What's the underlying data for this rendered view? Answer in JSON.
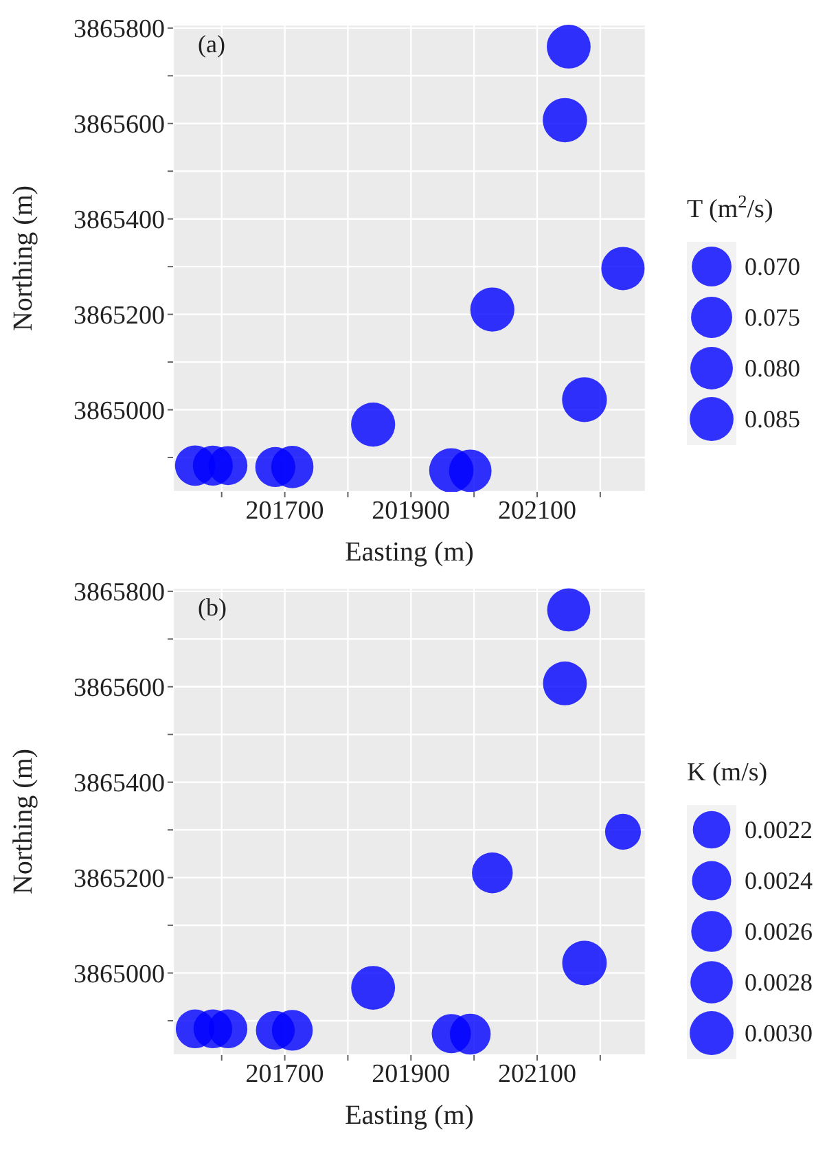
{
  "chart_data": [
    {
      "type": "bubble",
      "xlabel": "Easting (m)",
      "ylabel": "Northing (m)",
      "legend_title": "T (m$^{2}$/s)",
      "annotations": [
        "(a)"
      ],
      "color": "#0000ff",
      "x": [
        201558,
        201586,
        201610,
        201685,
        201712,
        201840,
        201964,
        201994,
        202029,
        202144,
        202150,
        202175,
        202236
      ],
      "values": [
        3864883,
        3864883,
        3864883,
        3864880,
        3864880,
        3864969,
        3864873,
        3864872,
        3865210,
        3865607,
        3865761,
        3865021,
        3865296
      ],
      "sizes": [
        0.072,
        0.0706,
        0.067,
        0.071,
        0.079,
        0.086,
        0.087,
        0.08,
        0.086,
        0.087,
        0.085,
        0.089,
        0.083
      ],
      "size_legend": [
        {
          "value": 0.07,
          "label": "0.070"
        },
        0.075,
        {
          "value": 0.08,
          "label": "0.080"
        },
        0.085
      ],
      "xlim": [
        201523,
        202272
      ],
      "xticks": [
        {
          "value": 201600,
          "label": null
        },
        201700,
        {
          "value": 201800,
          "label": null
        },
        201900,
        {
          "value": 202000,
          "label": null
        },
        202100,
        {
          "value": 202200,
          "label": null
        }
      ],
      "ylim": [
        3864828,
        3865807
      ],
      "yticks": [
        {
          "value": 3864900,
          "label": null
        },
        3865000,
        {
          "value": 3865100,
          "label": null
        },
        3865200,
        {
          "value": 3865300,
          "label": null
        },
        3865400,
        {
          "value": 3865500,
          "label": null
        },
        3865600,
        {
          "value": 3865700,
          "label": null
        },
        3865800
      ],
      "grid": true
    },
    {
      "type": "bubble",
      "xlabel": "Easting (m)",
      "ylabel": "Northing (m)",
      "legend_title": "K (m/s)",
      "annotations": [
        "(b)"
      ],
      "color": "#0000ff",
      "x": [
        201558,
        201586,
        201610,
        201685,
        201712,
        201840,
        201964,
        201994,
        202029,
        202144,
        202150,
        202175,
        202236
      ],
      "values": [
        3864883,
        3864883,
        3864883,
        3864880,
        3864880,
        3864969,
        3864873,
        3864872,
        3865210,
        3865607,
        3865761,
        3865021,
        3865296
      ],
      "sizes": [
        0.00235,
        0.00235,
        0.00235,
        0.00235,
        0.0026,
        0.003,
        0.0024,
        0.0026,
        0.0026,
        0.003,
        0.0029,
        0.0031,
        0.002
      ],
      "size_legend": [
        0.0022,
        0.0024,
        0.0026,
        0.0028,
        {
          "value": 0.003,
          "label": "0.0030"
        }
      ],
      "xlim": [
        201523,
        202272
      ],
      "xticks": [
        {
          "value": 201600,
          "label": null
        },
        201700,
        {
          "value": 201800,
          "label": null
        },
        201900,
        {
          "value": 202000,
          "label": null
        },
        202100,
        {
          "value": 202200,
          "label": null
        }
      ],
      "ylim": [
        3864828,
        3865807
      ],
      "yticks": [
        {
          "value": 3864900,
          "label": null
        },
        3865000,
        {
          "value": 3865100,
          "label": null
        },
        3865200,
        {
          "value": 3865300,
          "label": null
        },
        3865400,
        {
          "value": 3865500,
          "label": null
        },
        3865600,
        {
          "value": 3865700,
          "label": null
        },
        3865800
      ],
      "grid": true
    }
  ]
}
